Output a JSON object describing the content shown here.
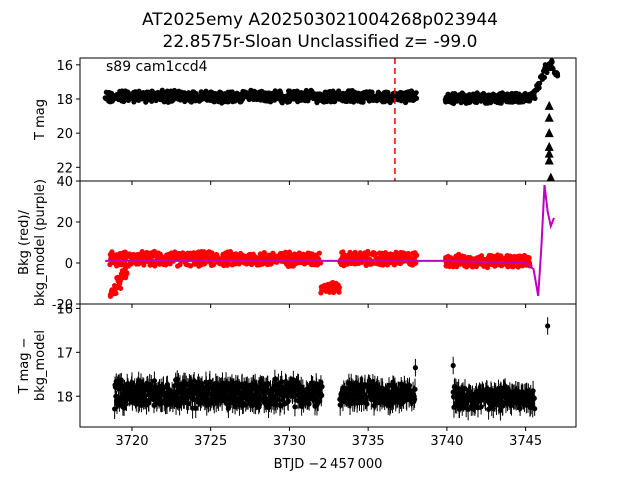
{
  "figure": {
    "title_line1": "AT2025emy  A202503021004268p023944",
    "title_line2": "22.8575r-Sloan Unclassified z= -99.0",
    "xlabel": "BTJD −2 457 000"
  },
  "chart_data": [
    {
      "type": "scatter",
      "panel": "top",
      "annotation": "s89 cam1ccd4",
      "ylabel": "T mag",
      "xlim": [
        3716.7,
        3748.2
      ],
      "ylim": [
        22.8,
        15.6
      ],
      "y_inverted": true,
      "yticks": [
        16,
        18,
        20,
        22
      ],
      "vertical_line": {
        "x": 3736.7,
        "color": "#ff0000",
        "style": "dashed"
      },
      "series": [
        {
          "marker": "circle",
          "color": "#000000",
          "segments": [
            {
              "x_start": 3718.3,
              "x_end": 3738.1,
              "y_center": 17.85,
              "y_spread": 0.4
            },
            {
              "x_start": 3739.9,
              "x_end": 3745.3,
              "y_center": 17.95,
              "y_spread": 0.35
            }
          ],
          "rise": [
            [
              3745.3,
              17.8
            ],
            [
              3745.6,
              17.3
            ],
            [
              3745.9,
              16.6
            ],
            [
              3746.2,
              16.2
            ],
            [
              3746.5,
              16.0
            ],
            [
              3746.8,
              16.4
            ]
          ]
        },
        {
          "marker": "triangle-up",
          "color": "#000000",
          "points": [
            [
              3746.5,
              18.4
            ],
            [
              3746.5,
              19.1
            ],
            [
              3746.5,
              20.0
            ],
            [
              3746.5,
              20.8
            ],
            [
              3746.5,
              21.2
            ],
            [
              3746.5,
              21.6
            ],
            [
              3746.6,
              22.6
            ]
          ]
        }
      ]
    },
    {
      "type": "line",
      "panel": "middle",
      "ylabel": "Bkg (red)/\nbkg_model (purple)",
      "xlim": [
        3716.7,
        3748.2
      ],
      "ylim": [
        -20,
        40
      ],
      "yticks": [
        -20,
        0,
        20,
        40
      ],
      "series": [
        {
          "name_shown": "red",
          "marker": "circle",
          "color": "#ff0000",
          "segments": [
            {
              "x_start": 3718.6,
              "x_end": 3732.0,
              "y_center": 2,
              "y_spread": 4
            },
            {
              "x_start": 3732.0,
              "x_end": 3733.2,
              "y_center": -12,
              "y_spread": 3
            },
            {
              "x_start": 3733.2,
              "x_end": 3738.1,
              "y_center": 2,
              "y_spread": 4
            },
            {
              "x_start": 3739.9,
              "x_end": 3745.3,
              "y_center": 1,
              "y_spread": 3.5
            }
          ],
          "start_dip": [
            [
              3718.6,
              -14
            ],
            [
              3718.9,
              -10
            ],
            [
              3719.3,
              -5
            ]
          ]
        },
        {
          "name_shown": "purple",
          "color": "#bf00bf",
          "points": [
            [
              3718.3,
              1
            ],
            [
              3725,
              1
            ],
            [
              3738.1,
              1
            ],
            [
              3739.9,
              1
            ],
            [
              3745.0,
              0
            ],
            [
              3745.5,
              -3
            ],
            [
              3745.8,
              -16
            ],
            [
              3746.0,
              8
            ],
            [
              3746.2,
              38
            ],
            [
              3746.4,
              25
            ],
            [
              3746.6,
              18
            ],
            [
              3746.8,
              22
            ]
          ]
        }
      ]
    },
    {
      "type": "scatter",
      "panel": "bottom",
      "ylabel": "T mag −\nbkg_model",
      "xlim": [
        3716.7,
        3748.2
      ],
      "ylim": [
        18.7,
        15.9
      ],
      "y_inverted": true,
      "yticks": [
        16,
        17,
        18
      ],
      "xticks": [
        3720,
        3725,
        3730,
        3735,
        3740,
        3745
      ],
      "error_bars": true,
      "series": [
        {
          "marker": "circle",
          "color": "#000000",
          "segments": [
            {
              "x_start": 3718.9,
              "x_end": 3732.1,
              "y_center": 17.95,
              "y_spread": 0.35
            },
            {
              "x_start": 3733.2,
              "x_end": 3738.0,
              "y_center": 17.95,
              "y_spread": 0.3
            },
            {
              "x_start": 3740.4,
              "x_end": 3745.6,
              "y_center": 18.05,
              "y_spread": 0.3
            }
          ],
          "outliers": [
            [
              3738.0,
              17.35
            ],
            [
              3740.4,
              17.3
            ],
            [
              3746.4,
              16.4
            ]
          ]
        }
      ]
    }
  ]
}
